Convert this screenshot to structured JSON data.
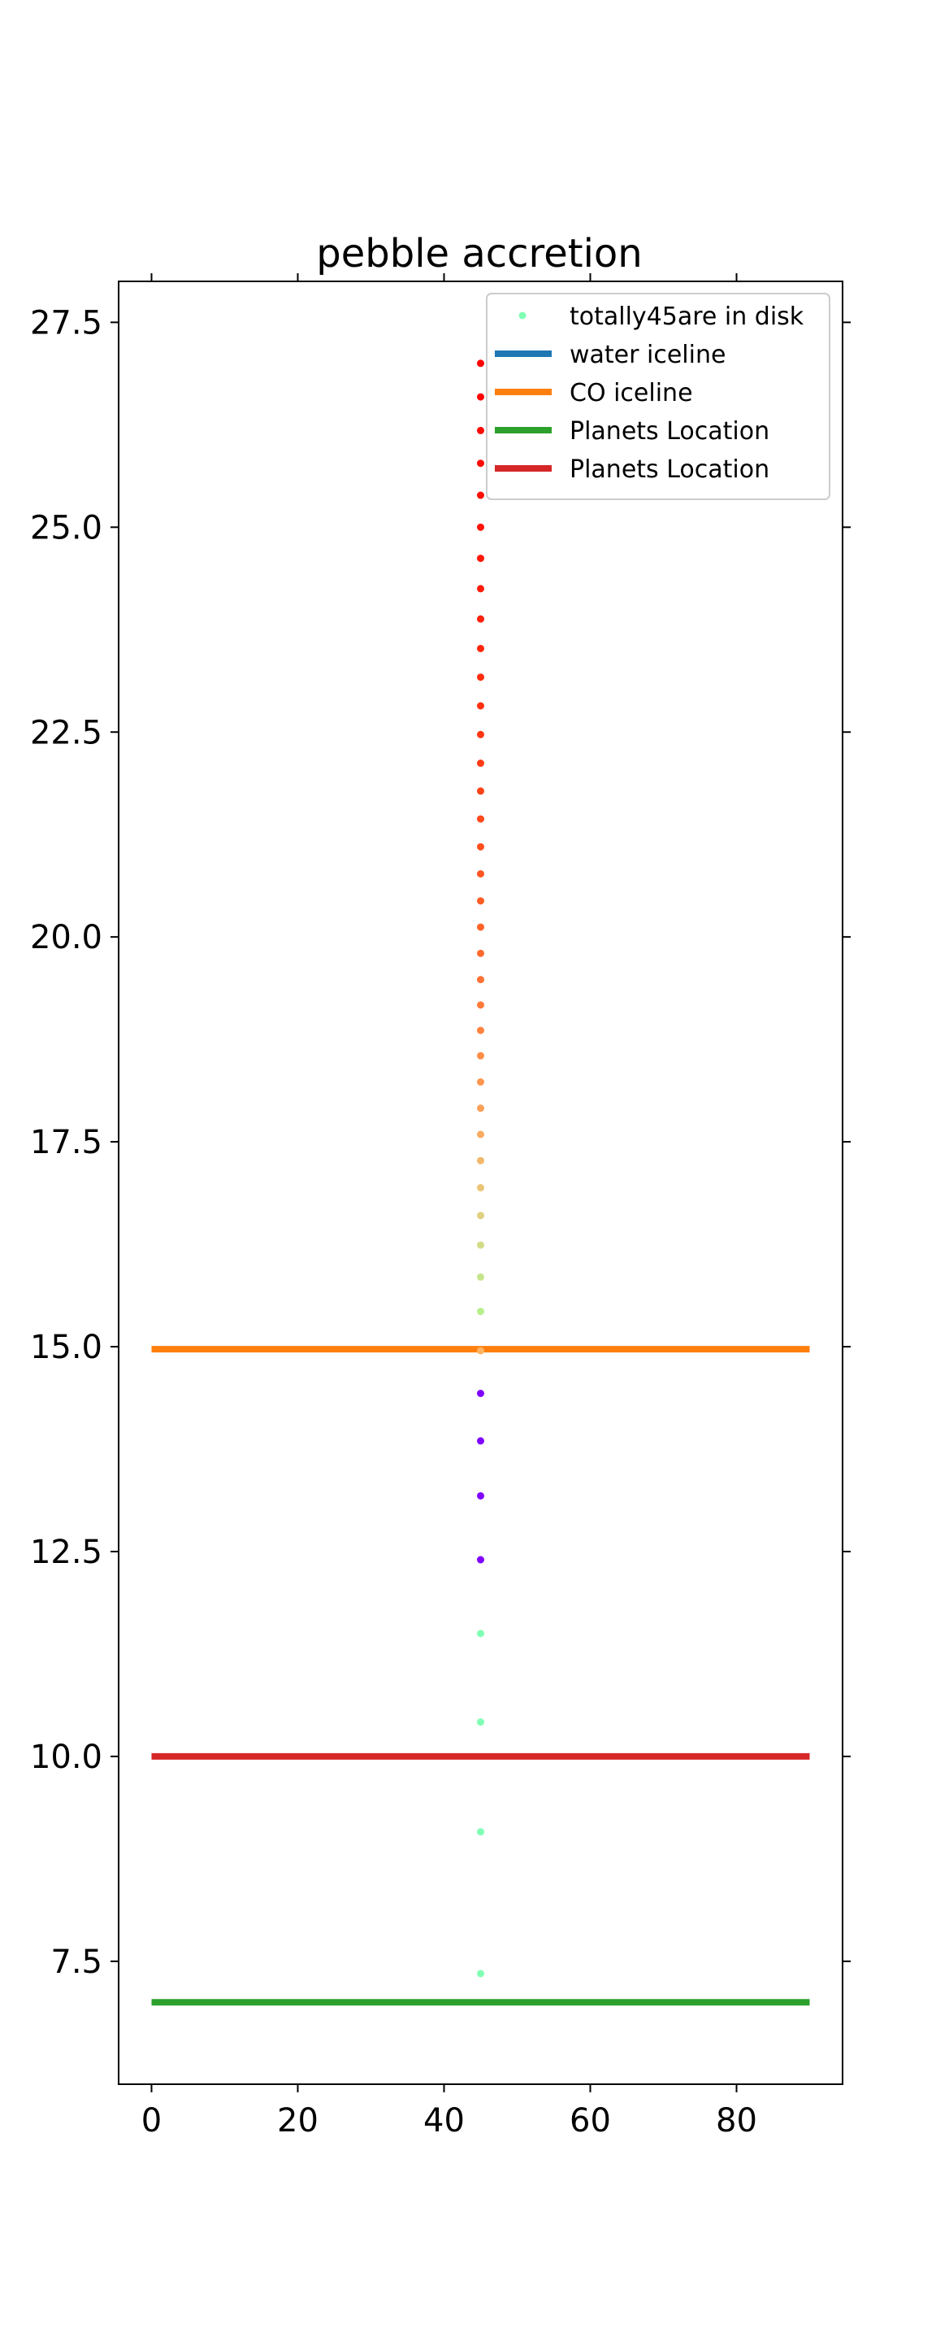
{
  "chart_data": {
    "type": "scatter",
    "title": "pebble accretion",
    "xlabel": "",
    "ylabel": "",
    "xlim": [
      -4.5,
      94.5
    ],
    "ylim": [
      6.0,
      28.0
    ],
    "xticks": [
      0,
      20,
      40,
      60,
      80
    ],
    "yticks": [
      7.5,
      10.0,
      12.5,
      15.0,
      17.5,
      20.0,
      22.5,
      25.0,
      27.5
    ],
    "xtick_labels": [
      "0",
      "20",
      "40",
      "60",
      "80"
    ],
    "ytick_labels": [
      "7.5",
      "10.0",
      "12.5",
      "15.0",
      "17.5",
      "20.0",
      "22.5",
      "25.0",
      "27.5"
    ],
    "grid": false,
    "legend_position": "top-right",
    "legend": [
      {
        "label": "totally45are in disk",
        "kind": "marker",
        "color": "#80ffb4"
      },
      {
        "label": "water iceline",
        "kind": "line",
        "color": "#1f77b4"
      },
      {
        "label": "CO iceline",
        "kind": "line",
        "color": "#ff7f0e"
      },
      {
        "label": "Planets Location",
        "kind": "line",
        "color": "#2ca02c"
      },
      {
        "label": "Planets Location",
        "kind": "line",
        "color": "#d62728"
      }
    ],
    "hlines": [
      {
        "y": 14.97,
        "x": [
          0,
          90
        ],
        "color": "#ff7f0e"
      },
      {
        "y": 10.0,
        "x": [
          0,
          90
        ],
        "color": "#d62728"
      },
      {
        "y": 7.0,
        "x": [
          0,
          90
        ],
        "color": "#2ca02c"
      }
    ],
    "points": [
      {
        "x": 45,
        "y": 7.35,
        "color": "#80ffb4"
      },
      {
        "x": 45,
        "y": 9.08,
        "color": "#80ffb4"
      },
      {
        "x": 45,
        "y": 10.42,
        "color": "#80ffb4"
      },
      {
        "x": 45,
        "y": 11.5,
        "color": "#80ffb4"
      },
      {
        "x": 45,
        "y": 12.4,
        "color": "#8000ff"
      },
      {
        "x": 45,
        "y": 13.18,
        "color": "#8000ff"
      },
      {
        "x": 45,
        "y": 13.85,
        "color": "#8000ff"
      },
      {
        "x": 45,
        "y": 14.43,
        "color": "#8000ff"
      },
      {
        "x": 45,
        "y": 14.95,
        "color": "#ffb360"
      },
      {
        "x": 45,
        "y": 15.43,
        "color": "#b6ef8c"
      },
      {
        "x": 45,
        "y": 15.85,
        "color": "#c6e58b"
      },
      {
        "x": 45,
        "y": 16.24,
        "color": "#d4db86"
      },
      {
        "x": 45,
        "y": 16.6,
        "color": "#e0d07f"
      },
      {
        "x": 45,
        "y": 16.94,
        "color": "#eac476"
      },
      {
        "x": 45,
        "y": 17.27,
        "color": "#f2b86c"
      },
      {
        "x": 45,
        "y": 17.59,
        "color": "#f8ab62"
      },
      {
        "x": 45,
        "y": 17.91,
        "color": "#fca058"
      },
      {
        "x": 45,
        "y": 18.23,
        "color": "#ff964f"
      },
      {
        "x": 45,
        "y": 18.55,
        "color": "#ff8c47"
      },
      {
        "x": 45,
        "y": 18.86,
        "color": "#ff8340"
      },
      {
        "x": 45,
        "y": 19.17,
        "color": "#ff7a3a"
      },
      {
        "x": 45,
        "y": 19.48,
        "color": "#ff7234"
      },
      {
        "x": 45,
        "y": 19.8,
        "color": "#ff6a2f"
      },
      {
        "x": 45,
        "y": 20.12,
        "color": "#ff632a"
      },
      {
        "x": 45,
        "y": 20.44,
        "color": "#ff5c26"
      },
      {
        "x": 45,
        "y": 20.77,
        "color": "#ff5522"
      },
      {
        "x": 45,
        "y": 21.1,
        "color": "#ff4e1e"
      },
      {
        "x": 45,
        "y": 21.44,
        "color": "#ff481b"
      },
      {
        "x": 45,
        "y": 21.78,
        "color": "#ff4218"
      },
      {
        "x": 45,
        "y": 22.12,
        "color": "#ff3c15"
      },
      {
        "x": 45,
        "y": 22.47,
        "color": "#ff3612"
      },
      {
        "x": 45,
        "y": 22.82,
        "color": "#ff3010"
      },
      {
        "x": 45,
        "y": 23.17,
        "color": "#ff2b0d"
      },
      {
        "x": 45,
        "y": 23.52,
        "color": "#ff250b"
      },
      {
        "x": 45,
        "y": 23.88,
        "color": "#ff2009"
      },
      {
        "x": 45,
        "y": 24.25,
        "color": "#ff1b07"
      },
      {
        "x": 45,
        "y": 24.62,
        "color": "#ff1605"
      },
      {
        "x": 45,
        "y": 25.0,
        "color": "#ff1104"
      },
      {
        "x": 45,
        "y": 25.39,
        "color": "#ff0d03"
      },
      {
        "x": 45,
        "y": 25.78,
        "color": "#ff0902"
      },
      {
        "x": 45,
        "y": 26.18,
        "color": "#ff0601"
      },
      {
        "x": 45,
        "y": 26.59,
        "color": "#ff0300"
      },
      {
        "x": 45,
        "y": 27.0,
        "color": "#ff0000"
      }
    ]
  }
}
